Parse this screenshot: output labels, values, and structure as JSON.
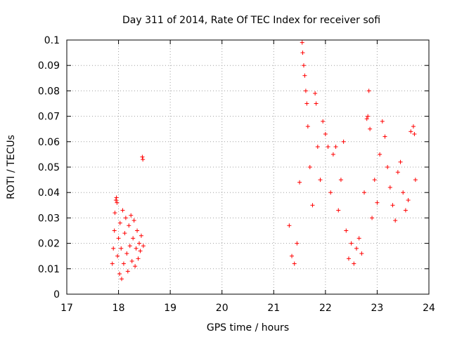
{
  "chart_data": {
    "type": "scatter",
    "title": "Day 311 of 2014, Rate Of TEC Index for receiver sofi",
    "xlabel": "GPS time / hours",
    "ylabel": "ROTI / TECUs",
    "xlim": [
      17,
      24
    ],
    "ylim": [
      0,
      0.1
    ],
    "xticks": [
      "17",
      "18",
      "19",
      "20",
      "21",
      "22",
      "23",
      "24"
    ],
    "yticks": [
      "0",
      "0.01",
      "0.02",
      "0.03",
      "0.04",
      "0.05",
      "0.06",
      "0.07",
      "0.08",
      "0.09",
      "0.1"
    ],
    "grid": true,
    "marker": "plus",
    "color": "#ff0000",
    "series": [
      {
        "name": "ROTI",
        "points": [
          [
            17.88,
            0.012
          ],
          [
            17.9,
            0.018
          ],
          [
            17.92,
            0.025
          ],
          [
            17.93,
            0.032
          ],
          [
            17.95,
            0.037
          ],
          [
            17.96,
            0.038
          ],
          [
            17.97,
            0.036
          ],
          [
            17.98,
            0.015
          ],
          [
            18.0,
            0.022
          ],
          [
            18.02,
            0.008
          ],
          [
            18.03,
            0.028
          ],
          [
            18.05,
            0.018
          ],
          [
            18.06,
            0.006
          ],
          [
            18.08,
            0.033
          ],
          [
            18.1,
            0.012
          ],
          [
            18.12,
            0.024
          ],
          [
            18.14,
            0.03
          ],
          [
            18.16,
            0.016
          ],
          [
            18.18,
            0.009
          ],
          [
            18.2,
            0.027
          ],
          [
            18.22,
            0.019
          ],
          [
            18.24,
            0.031
          ],
          [
            18.26,
            0.013
          ],
          [
            18.28,
            0.022
          ],
          [
            18.3,
            0.029
          ],
          [
            18.32,
            0.011
          ],
          [
            18.34,
            0.018
          ],
          [
            18.36,
            0.025
          ],
          [
            18.38,
            0.014
          ],
          [
            18.4,
            0.02
          ],
          [
            18.42,
            0.017
          ],
          [
            18.44,
            0.023
          ],
          [
            18.46,
            0.054
          ],
          [
            18.47,
            0.053
          ],
          [
            18.48,
            0.019
          ],
          [
            21.3,
            0.027
          ],
          [
            21.35,
            0.015
          ],
          [
            21.4,
            0.012
          ],
          [
            21.45,
            0.02
          ],
          [
            21.5,
            0.044
          ],
          [
            21.55,
            0.099
          ],
          [
            21.56,
            0.095
          ],
          [
            21.58,
            0.09
          ],
          [
            21.6,
            0.086
          ],
          [
            21.62,
            0.08
          ],
          [
            21.64,
            0.075
          ],
          [
            21.66,
            0.066
          ],
          [
            21.7,
            0.05
          ],
          [
            21.75,
            0.035
          ],
          [
            21.8,
            0.079
          ],
          [
            21.82,
            0.075
          ],
          [
            21.85,
            0.058
          ],
          [
            21.9,
            0.045
          ],
          [
            21.95,
            0.068
          ],
          [
            22.0,
            0.063
          ],
          [
            22.05,
            0.058
          ],
          [
            22.1,
            0.04
          ],
          [
            22.15,
            0.055
          ],
          [
            22.2,
            0.058
          ],
          [
            22.25,
            0.033
          ],
          [
            22.3,
            0.045
          ],
          [
            22.35,
            0.06
          ],
          [
            22.4,
            0.025
          ],
          [
            22.45,
            0.014
          ],
          [
            22.5,
            0.02
          ],
          [
            22.55,
            0.012
          ],
          [
            22.6,
            0.018
          ],
          [
            22.65,
            0.022
          ],
          [
            22.7,
            0.016
          ],
          [
            22.75,
            0.04
          ],
          [
            22.8,
            0.069
          ],
          [
            22.82,
            0.07
          ],
          [
            22.84,
            0.08
          ],
          [
            22.86,
            0.065
          ],
          [
            22.9,
            0.03
          ],
          [
            22.95,
            0.045
          ],
          [
            23.0,
            0.036
          ],
          [
            23.05,
            0.055
          ],
          [
            23.1,
            0.068
          ],
          [
            23.15,
            0.062
          ],
          [
            23.2,
            0.05
          ],
          [
            23.25,
            0.042
          ],
          [
            23.3,
            0.035
          ],
          [
            23.35,
            0.029
          ],
          [
            23.4,
            0.048
          ],
          [
            23.45,
            0.052
          ],
          [
            23.5,
            0.04
          ],
          [
            23.55,
            0.033
          ],
          [
            23.6,
            0.037
          ],
          [
            23.65,
            0.064
          ],
          [
            23.7,
            0.066
          ],
          [
            23.72,
            0.063
          ],
          [
            23.74,
            0.045
          ]
        ]
      }
    ]
  }
}
